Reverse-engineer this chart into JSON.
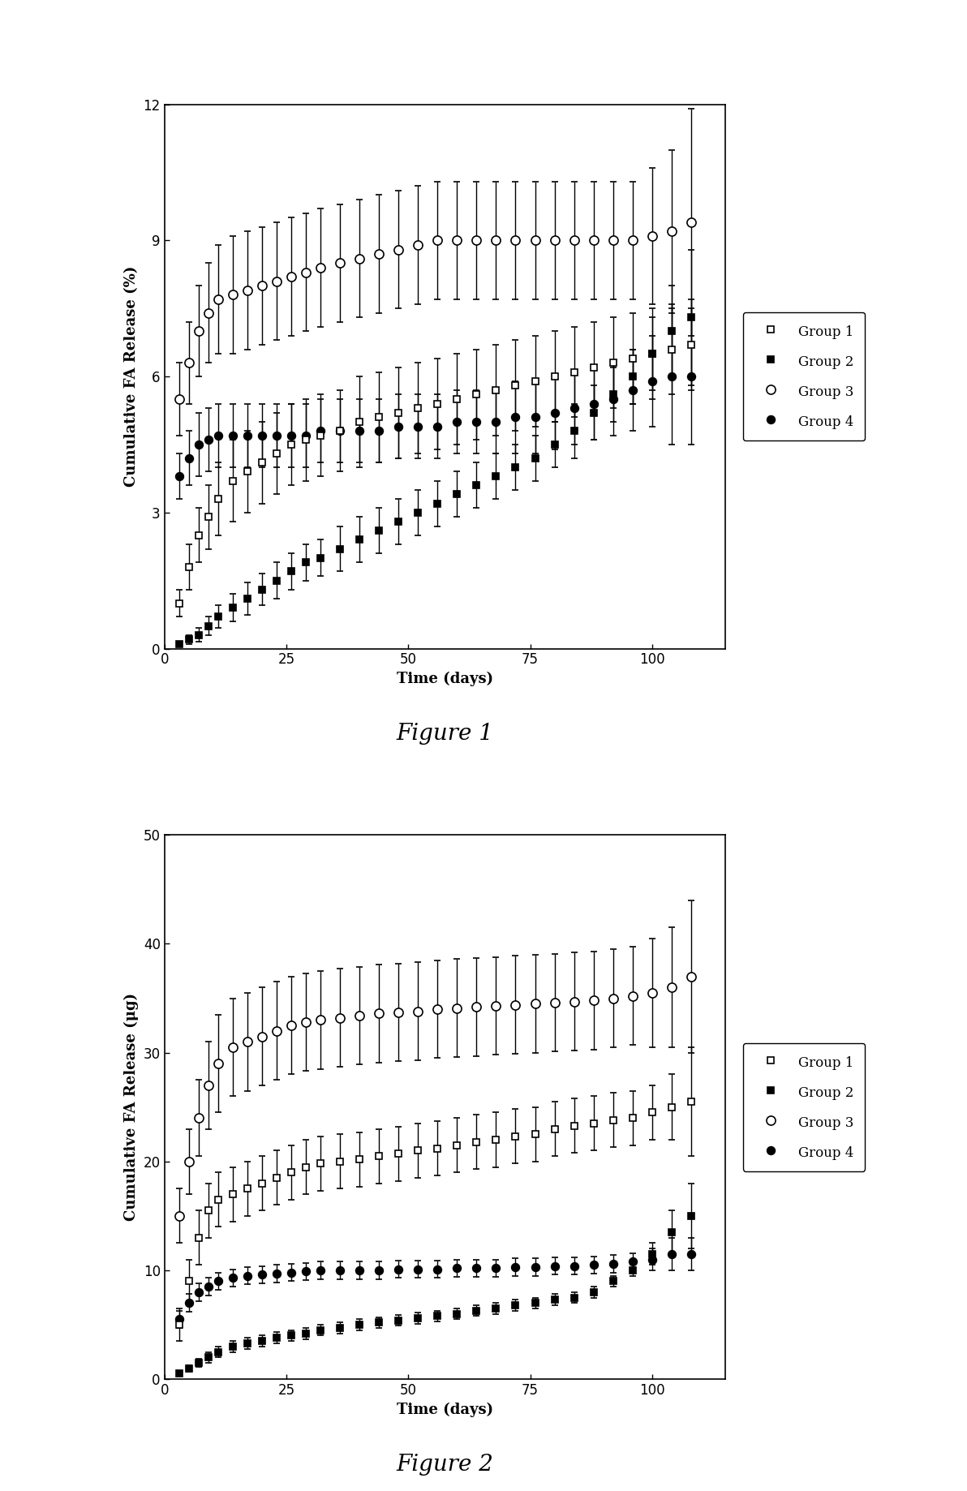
{
  "fig1": {
    "title": "Figure 1",
    "ylabel": "Cumulative FA Release (%)",
    "xlabel": "Time (days)",
    "xlim": [
      0,
      115
    ],
    "ylim": [
      0,
      12
    ],
    "yticks": [
      0,
      3,
      6,
      9,
      12
    ],
    "xticks": [
      0,
      25,
      50,
      75,
      100
    ],
    "groups": {
      "Group 1": {
        "marker": "s",
        "filled": false,
        "x": [
          3,
          5,
          7,
          9,
          11,
          14,
          17,
          20,
          23,
          26,
          29,
          32,
          36,
          40,
          44,
          48,
          52,
          56,
          60,
          64,
          68,
          72,
          76,
          80,
          84,
          88,
          92,
          96,
          100,
          104,
          108
        ],
        "y": [
          1.0,
          1.8,
          2.5,
          2.9,
          3.3,
          3.7,
          3.9,
          4.1,
          4.3,
          4.5,
          4.6,
          4.7,
          4.8,
          5.0,
          5.1,
          5.2,
          5.3,
          5.4,
          5.5,
          5.6,
          5.7,
          5.8,
          5.9,
          6.0,
          6.1,
          6.2,
          6.3,
          6.4,
          6.5,
          6.6,
          6.7
        ],
        "yerr": [
          0.3,
          0.5,
          0.6,
          0.7,
          0.8,
          0.9,
          0.9,
          0.9,
          0.9,
          0.9,
          0.9,
          0.9,
          0.9,
          1.0,
          1.0,
          1.0,
          1.0,
          1.0,
          1.0,
          1.0,
          1.0,
          1.0,
          1.0,
          1.0,
          1.0,
          1.0,
          1.0,
          1.0,
          1.0,
          1.0,
          1.0
        ]
      },
      "Group 2": {
        "marker": "s",
        "filled": true,
        "x": [
          3,
          5,
          7,
          9,
          11,
          14,
          17,
          20,
          23,
          26,
          29,
          32,
          36,
          40,
          44,
          48,
          52,
          56,
          60,
          64,
          68,
          72,
          76,
          80,
          84,
          88,
          92,
          96,
          100,
          104,
          108
        ],
        "y": [
          0.1,
          0.2,
          0.3,
          0.5,
          0.7,
          0.9,
          1.1,
          1.3,
          1.5,
          1.7,
          1.9,
          2.0,
          2.2,
          2.4,
          2.6,
          2.8,
          3.0,
          3.2,
          3.4,
          3.6,
          3.8,
          4.0,
          4.2,
          4.5,
          4.8,
          5.2,
          5.6,
          6.0,
          6.5,
          7.0,
          7.3
        ],
        "yerr": [
          0.05,
          0.1,
          0.15,
          0.2,
          0.25,
          0.3,
          0.35,
          0.35,
          0.4,
          0.4,
          0.4,
          0.4,
          0.5,
          0.5,
          0.5,
          0.5,
          0.5,
          0.5,
          0.5,
          0.5,
          0.5,
          0.5,
          0.5,
          0.5,
          0.6,
          0.6,
          0.6,
          0.6,
          0.8,
          1.0,
          1.5
        ]
      },
      "Group 3": {
        "marker": "o",
        "filled": false,
        "x": [
          3,
          5,
          7,
          9,
          11,
          14,
          17,
          20,
          23,
          26,
          29,
          32,
          36,
          40,
          44,
          48,
          52,
          56,
          60,
          64,
          68,
          72,
          76,
          80,
          84,
          88,
          92,
          96,
          100,
          104,
          108
        ],
        "y": [
          5.5,
          6.3,
          7.0,
          7.4,
          7.7,
          7.8,
          7.9,
          8.0,
          8.1,
          8.2,
          8.3,
          8.4,
          8.5,
          8.6,
          8.7,
          8.8,
          8.9,
          9.0,
          9.0,
          9.0,
          9.0,
          9.0,
          9.0,
          9.0,
          9.0,
          9.0,
          9.0,
          9.0,
          9.1,
          9.2,
          9.4
        ],
        "yerr": [
          0.8,
          0.9,
          1.0,
          1.1,
          1.2,
          1.3,
          1.3,
          1.3,
          1.3,
          1.3,
          1.3,
          1.3,
          1.3,
          1.3,
          1.3,
          1.3,
          1.3,
          1.3,
          1.3,
          1.3,
          1.3,
          1.3,
          1.3,
          1.3,
          1.3,
          1.3,
          1.3,
          1.3,
          1.5,
          1.8,
          2.5
        ]
      },
      "Group 4": {
        "marker": "o",
        "filled": true,
        "x": [
          3,
          5,
          7,
          9,
          11,
          14,
          17,
          20,
          23,
          26,
          29,
          32,
          36,
          40,
          44,
          48,
          52,
          56,
          60,
          64,
          68,
          72,
          76,
          80,
          84,
          88,
          92,
          96,
          100,
          104,
          108
        ],
        "y": [
          3.8,
          4.2,
          4.5,
          4.6,
          4.7,
          4.7,
          4.7,
          4.7,
          4.7,
          4.7,
          4.7,
          4.8,
          4.8,
          4.8,
          4.8,
          4.9,
          4.9,
          4.9,
          5.0,
          5.0,
          5.0,
          5.1,
          5.1,
          5.2,
          5.3,
          5.4,
          5.5,
          5.7,
          5.9,
          6.0,
          6.0
        ],
        "yerr": [
          0.5,
          0.6,
          0.7,
          0.7,
          0.7,
          0.7,
          0.7,
          0.7,
          0.7,
          0.7,
          0.7,
          0.7,
          0.7,
          0.7,
          0.7,
          0.7,
          0.7,
          0.7,
          0.7,
          0.7,
          0.7,
          0.8,
          0.8,
          0.8,
          0.8,
          0.8,
          0.8,
          0.9,
          1.0,
          1.5,
          1.5
        ]
      }
    }
  },
  "fig2": {
    "title": "Figure 2",
    "ylabel": "Cumulative FA Release (μg)",
    "xlabel": "Time (days)",
    "xlim": [
      0,
      115
    ],
    "ylim": [
      0,
      50
    ],
    "yticks": [
      0,
      10,
      20,
      30,
      40,
      50
    ],
    "xticks": [
      0,
      25,
      50,
      75,
      100
    ],
    "groups": {
      "Group 1": {
        "marker": "s",
        "filled": false,
        "x": [
          3,
          5,
          7,
          9,
          11,
          14,
          17,
          20,
          23,
          26,
          29,
          32,
          36,
          40,
          44,
          48,
          52,
          56,
          60,
          64,
          68,
          72,
          76,
          80,
          84,
          88,
          92,
          96,
          100,
          104,
          108
        ],
        "y": [
          5.0,
          9.0,
          13.0,
          15.5,
          16.5,
          17.0,
          17.5,
          18.0,
          18.5,
          19.0,
          19.5,
          19.8,
          20.0,
          20.2,
          20.5,
          20.7,
          21.0,
          21.2,
          21.5,
          21.8,
          22.0,
          22.3,
          22.5,
          23.0,
          23.3,
          23.5,
          23.8,
          24.0,
          24.5,
          25.0,
          25.5
        ],
        "yerr": [
          1.5,
          2.0,
          2.5,
          2.5,
          2.5,
          2.5,
          2.5,
          2.5,
          2.5,
          2.5,
          2.5,
          2.5,
          2.5,
          2.5,
          2.5,
          2.5,
          2.5,
          2.5,
          2.5,
          2.5,
          2.5,
          2.5,
          2.5,
          2.5,
          2.5,
          2.5,
          2.5,
          2.5,
          2.5,
          3.0,
          5.0
        ]
      },
      "Group 2": {
        "marker": "s",
        "filled": true,
        "x": [
          3,
          5,
          7,
          9,
          11,
          14,
          17,
          20,
          23,
          26,
          29,
          32,
          36,
          40,
          44,
          48,
          52,
          56,
          60,
          64,
          68,
          72,
          76,
          80,
          84,
          88,
          92,
          96,
          100,
          104,
          108
        ],
        "y": [
          0.5,
          1.0,
          1.5,
          2.0,
          2.5,
          3.0,
          3.3,
          3.5,
          3.8,
          4.0,
          4.2,
          4.5,
          4.7,
          5.0,
          5.2,
          5.4,
          5.6,
          5.8,
          6.0,
          6.3,
          6.5,
          6.8,
          7.0,
          7.3,
          7.5,
          8.0,
          9.0,
          10.0,
          11.5,
          13.5,
          15.0
        ],
        "yerr": [
          0.2,
          0.3,
          0.4,
          0.5,
          0.5,
          0.5,
          0.5,
          0.5,
          0.5,
          0.5,
          0.5,
          0.5,
          0.5,
          0.5,
          0.5,
          0.5,
          0.5,
          0.5,
          0.5,
          0.5,
          0.5,
          0.5,
          0.5,
          0.5,
          0.5,
          0.5,
          0.5,
          0.5,
          1.0,
          2.0,
          3.0
        ]
      },
      "Group 3": {
        "marker": "o",
        "filled": false,
        "x": [
          3,
          5,
          7,
          9,
          11,
          14,
          17,
          20,
          23,
          26,
          29,
          32,
          36,
          40,
          44,
          48,
          52,
          56,
          60,
          64,
          68,
          72,
          76,
          80,
          84,
          88,
          92,
          96,
          100,
          104,
          108
        ],
        "y": [
          15.0,
          20.0,
          24.0,
          27.0,
          29.0,
          30.5,
          31.0,
          31.5,
          32.0,
          32.5,
          32.8,
          33.0,
          33.2,
          33.4,
          33.6,
          33.7,
          33.8,
          34.0,
          34.1,
          34.2,
          34.3,
          34.4,
          34.5,
          34.6,
          34.7,
          34.8,
          35.0,
          35.2,
          35.5,
          36.0,
          37.0
        ],
        "yerr": [
          2.5,
          3.0,
          3.5,
          4.0,
          4.5,
          4.5,
          4.5,
          4.5,
          4.5,
          4.5,
          4.5,
          4.5,
          4.5,
          4.5,
          4.5,
          4.5,
          4.5,
          4.5,
          4.5,
          4.5,
          4.5,
          4.5,
          4.5,
          4.5,
          4.5,
          4.5,
          4.5,
          4.5,
          5.0,
          5.5,
          7.0
        ]
      },
      "Group 4": {
        "marker": "o",
        "filled": true,
        "x": [
          3,
          5,
          7,
          9,
          11,
          14,
          17,
          20,
          23,
          26,
          29,
          32,
          36,
          40,
          44,
          48,
          52,
          56,
          60,
          64,
          68,
          72,
          76,
          80,
          84,
          88,
          92,
          96,
          100,
          104,
          108
        ],
        "y": [
          5.5,
          7.0,
          8.0,
          8.5,
          9.0,
          9.3,
          9.5,
          9.6,
          9.7,
          9.8,
          9.9,
          10.0,
          10.0,
          10.0,
          10.0,
          10.1,
          10.1,
          10.1,
          10.2,
          10.2,
          10.2,
          10.3,
          10.3,
          10.4,
          10.4,
          10.5,
          10.6,
          10.8,
          11.0,
          11.5,
          11.5
        ],
        "yerr": [
          0.8,
          0.8,
          0.8,
          0.8,
          0.8,
          0.8,
          0.8,
          0.8,
          0.8,
          0.8,
          0.8,
          0.8,
          0.8,
          0.8,
          0.8,
          0.8,
          0.8,
          0.8,
          0.8,
          0.8,
          0.8,
          0.8,
          0.8,
          0.8,
          0.8,
          0.8,
          0.8,
          0.8,
          1.0,
          1.5,
          1.5
        ]
      }
    }
  },
  "legend_labels": [
    "Group 1",
    "Group 2",
    "Group 3",
    "Group 4"
  ],
  "figure_caption_fontsize": 20,
  "axis_label_fontsize": 13,
  "tick_fontsize": 12,
  "legend_fontsize": 12,
  "page_width": 11.92,
  "page_height": 18.38,
  "background_color": "#ffffff"
}
